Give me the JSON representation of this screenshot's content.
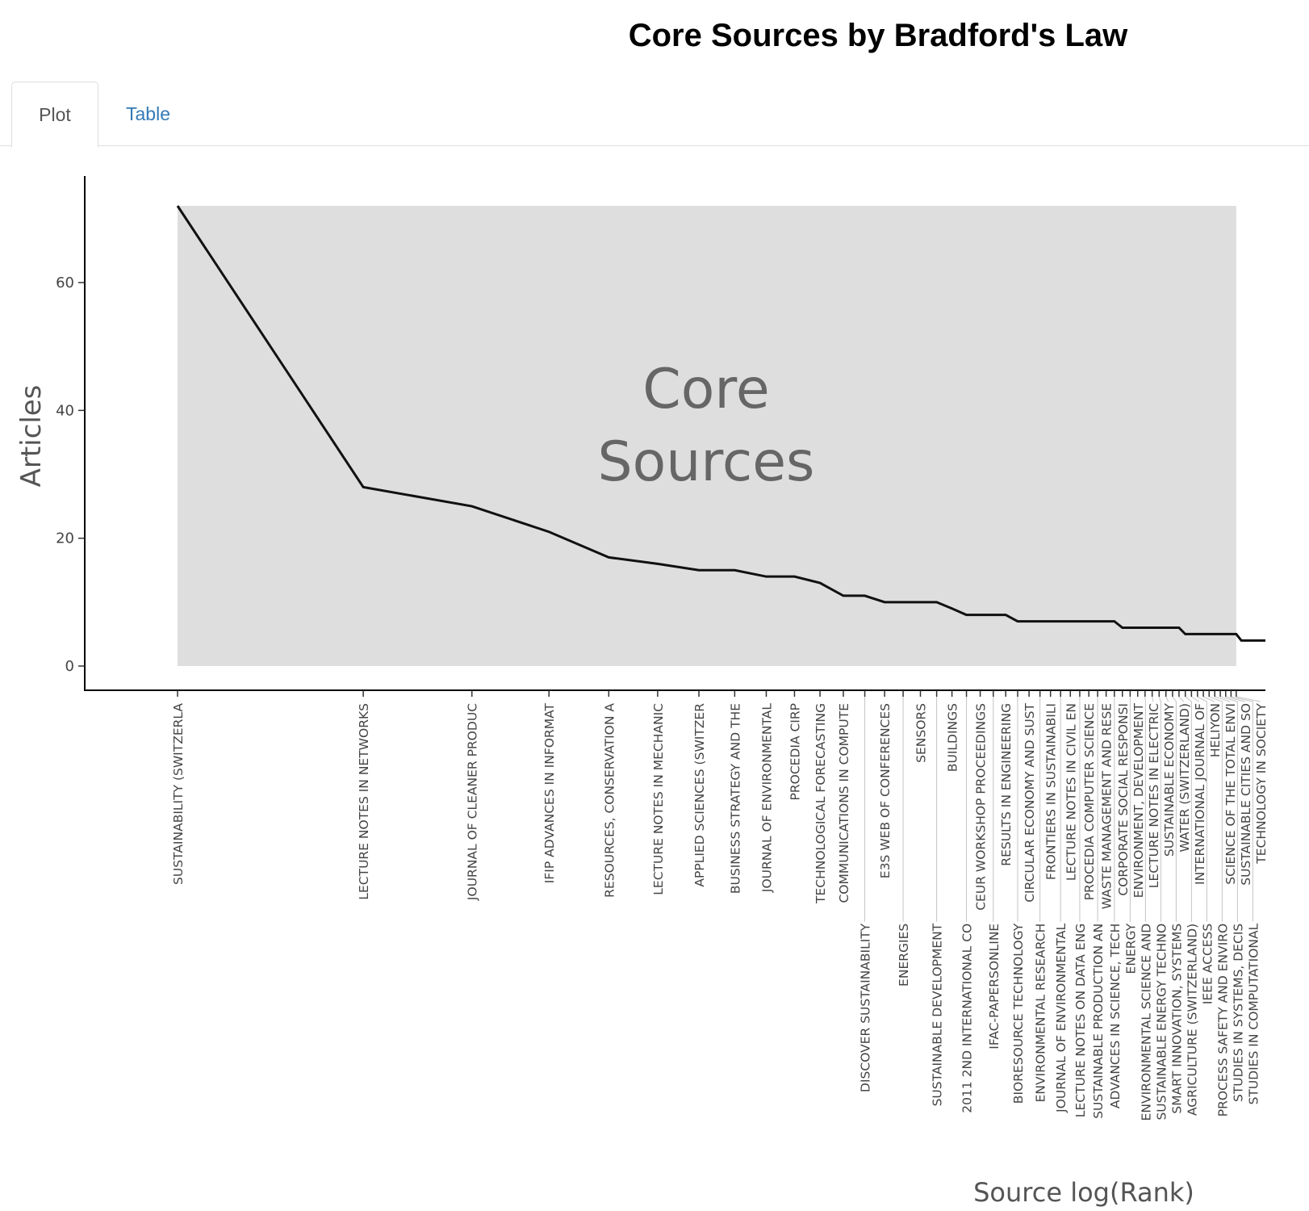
{
  "title": "Core Sources by Bradford's Law",
  "tabs": [
    {
      "label": "Plot",
      "active": true
    },
    {
      "label": "Table",
      "active": false
    }
  ],
  "colors": {
    "zone": "#dedede",
    "line": "#111111",
    "tab_link": "#337ab7",
    "annotation": "#666666"
  },
  "chart_data": {
    "type": "line",
    "title": "Core Sources by Bradford's Law",
    "xlabel": "Source log(Rank)",
    "ylabel": "Articles",
    "annotation": [
      "Core",
      "Sources"
    ],
    "yticks": [
      0,
      20,
      40,
      60
    ],
    "ylim": [
      -3.7,
      75.5
    ],
    "core_zone": {
      "rank_from": 1,
      "rank_to": 52,
      "articles_max": 72
    },
    "sources": [
      "SUSTAINABILITY (SWITZERLA",
      "LECTURE NOTES IN NETWORKS",
      "JOURNAL OF CLEANER PRODUC",
      "IFIP ADVANCES IN INFORMAT",
      "RESOURCES, CONSERVATION A",
      "LECTURE NOTES IN MECHANIC",
      "APPLIED SCIENCES (SWITZER",
      "BUSINESS STRATEGY AND THE",
      "JOURNAL OF ENVIRONMENTAL",
      "PROCEDIA CIRP",
      "TECHNOLOGICAL FORECASTING",
      "COMMUNICATIONS IN COMPUTE",
      "DISCOVER SUSTAINABILITY",
      "E3S WEB OF CONFERENCES",
      "ENERGIES",
      "SENSORS",
      "SUSTAINABLE DEVELOPMENT",
      "BUILDINGS",
      "2011 2ND INTERNATIONAL CO",
      "CEUR WORKSHOP PROCEEDINGS",
      "IFAC-PAPERSONLINE",
      "RESULTS IN ENGINEERING",
      "BIORESOURCE TECHNOLOGY",
      "CIRCULAR ECONOMY AND SUST",
      "ENVIRONMENTAL RESEARCH",
      "FRONTIERS IN SUSTAINABILI",
      "JOURNAL OF ENVIRONMENTAL",
      "LECTURE NOTES IN CIVIL EN",
      "LECTURE NOTES ON DATA ENG",
      "PROCEDIA COMPUTER SCIENCE",
      "SUSTAINABLE PRODUCTION AN",
      "WASTE MANAGEMENT AND RESE",
      "ADVANCES IN SCIENCE, TECH",
      "CORPORATE SOCIAL RESPONSI",
      "ENERGY",
      "ENVIRONMENT, DEVELOPMENT",
      "ENVIRONMENTAL SCIENCE AND",
      "LECTURE NOTES IN ELECTRIC",
      "SUSTAINABLE ENERGY TECHNO",
      "SUSTAINABLE ECONOMY",
      "SMART INNOVATION, SYSTEMS",
      "WATER (SWITZERLAND)",
      "AGRICULTURE (SWITZERLAND)",
      "INTERNATIONAL JOURNAL OF",
      "IEEE ACCESS",
      "HELIYON",
      "PROCESS SAFETY AND ENVIRO",
      "SCIENCE OF THE TOTAL ENVI",
      "STUDIES IN SYSTEMS, DECIS",
      "SUSTAINABLE CITIES AND SO",
      "STUDIES IN COMPUTATIONAL",
      "TECHNOLOGY IN SOCIETY"
    ],
    "articles": [
      72,
      28,
      25,
      21,
      17,
      16,
      15,
      15,
      14,
      14,
      13,
      11,
      11,
      10,
      10,
      10,
      10,
      9,
      8,
      8,
      8,
      8,
      7,
      7,
      7,
      7,
      7,
      7,
      7,
      7,
      7,
      7,
      7,
      6,
      6,
      6,
      6,
      6,
      6,
      6,
      6,
      6,
      5,
      5,
      5,
      5,
      5,
      5,
      5,
      5,
      5,
      5,
      4,
      4,
      4,
      4,
      4,
      4
    ]
  }
}
